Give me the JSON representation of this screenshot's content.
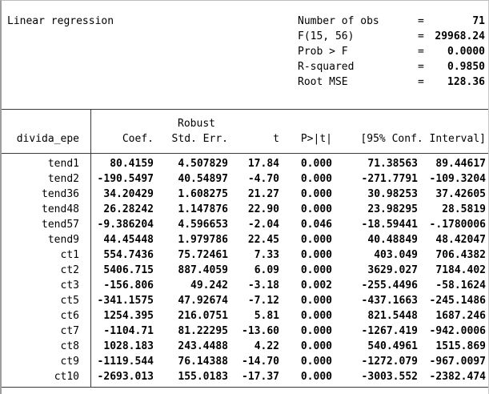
{
  "title": "Linear regression",
  "stats": [
    {
      "label": "Number of obs",
      "eq": "=",
      "value": "71"
    },
    {
      "label": "F(15, 56)",
      "eq": "=",
      "value": "29968.24"
    },
    {
      "label": "Prob > F",
      "eq": "=",
      "value": "0.0000"
    },
    {
      "label": "R-squared",
      "eq": "=",
      "value": "0.9850"
    },
    {
      "label": "Root MSE",
      "eq": "=",
      "value": "128.36"
    }
  ],
  "table": {
    "depvar": "divida_epe",
    "header": {
      "robust": "Robust",
      "coef": "Coef.",
      "stderr": "Std. Err.",
      "t": "t",
      "p": "P>|t|",
      "ci": "[95% Conf. Interval]"
    },
    "rows": [
      {
        "name": "tend1",
        "coef": "80.4159",
        "stderr": "4.507829",
        "t": "17.84",
        "p": "0.000",
        "ci_low": "71.38563",
        "ci_high": "89.44617"
      },
      {
        "name": "tend2",
        "coef": "-190.5497",
        "stderr": "40.54897",
        "t": "-4.70",
        "p": "0.000",
        "ci_low": "-271.7791",
        "ci_high": "-109.3204"
      },
      {
        "name": "tend36",
        "coef": "34.20429",
        "stderr": "1.608275",
        "t": "21.27",
        "p": "0.000",
        "ci_low": "30.98253",
        "ci_high": "37.42605"
      },
      {
        "name": "tend48",
        "coef": "26.28242",
        "stderr": "1.147876",
        "t": "22.90",
        "p": "0.000",
        "ci_low": "23.98295",
        "ci_high": "28.5819"
      },
      {
        "name": "tend57",
        "coef": "-9.386204",
        "stderr": "4.596653",
        "t": "-2.04",
        "p": "0.046",
        "ci_low": "-18.59441",
        "ci_high": "-.1780006"
      },
      {
        "name": "tend9",
        "coef": "44.45448",
        "stderr": "1.979786",
        "t": "22.45",
        "p": "0.000",
        "ci_low": "40.48849",
        "ci_high": "48.42047"
      },
      {
        "name": "ct1",
        "coef": "554.7436",
        "stderr": "75.72461",
        "t": "7.33",
        "p": "0.000",
        "ci_low": "403.049",
        "ci_high": "706.4382"
      },
      {
        "name": "ct2",
        "coef": "5406.715",
        "stderr": "887.4059",
        "t": "6.09",
        "p": "0.000",
        "ci_low": "3629.027",
        "ci_high": "7184.402"
      },
      {
        "name": "ct3",
        "coef": "-156.806",
        "stderr": "49.242",
        "t": "-3.18",
        "p": "0.002",
        "ci_low": "-255.4496",
        "ci_high": "-58.1624"
      },
      {
        "name": "ct5",
        "coef": "-341.1575",
        "stderr": "47.92674",
        "t": "-7.12",
        "p": "0.000",
        "ci_low": "-437.1663",
        "ci_high": "-245.1486"
      },
      {
        "name": "ct6",
        "coef": "1254.395",
        "stderr": "216.0751",
        "t": "5.81",
        "p": "0.000",
        "ci_low": "821.5448",
        "ci_high": "1687.246"
      },
      {
        "name": "ct7",
        "coef": "-1104.71",
        "stderr": "81.22295",
        "t": "-13.60",
        "p": "0.000",
        "ci_low": "-1267.419",
        "ci_high": "-942.0006"
      },
      {
        "name": "ct8",
        "coef": "1028.183",
        "stderr": "243.4488",
        "t": "4.22",
        "p": "0.000",
        "ci_low": "540.4961",
        "ci_high": "1515.869"
      },
      {
        "name": "ct9",
        "coef": "-1119.544",
        "stderr": "76.14388",
        "t": "-14.70",
        "p": "0.000",
        "ci_low": "-1272.079",
        "ci_high": "-967.0097"
      },
      {
        "name": "ct10",
        "coef": "-2693.013",
        "stderr": "155.0183",
        "t": "-17.37",
        "p": "0.000",
        "ci_low": "-3003.552",
        "ci_high": "-2382.474"
      }
    ]
  }
}
